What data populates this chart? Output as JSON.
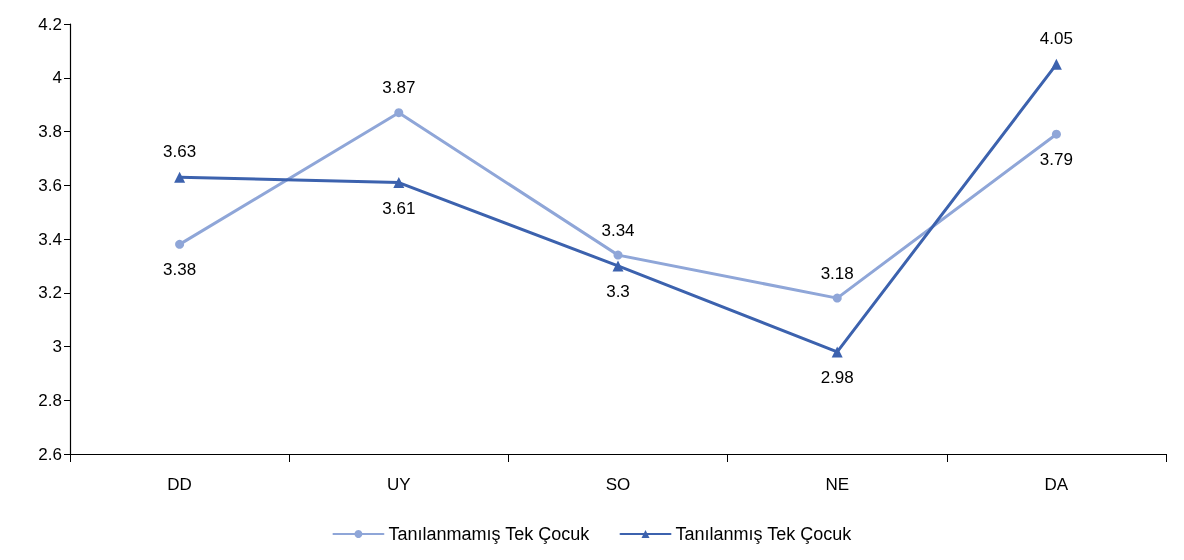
{
  "chart_data": {
    "type": "line",
    "categories": [
      "DD",
      "UY",
      "SO",
      "NE",
      "DA"
    ],
    "series": [
      {
        "name": "Tanılanmamış Tek Çocuk",
        "color": "#8fa6d8",
        "marker": "circle",
        "values": [
          3.38,
          3.87,
          3.34,
          3.18,
          3.79
        ]
      },
      {
        "name": "Tanılanmış Tek Çocuk",
        "color": "#3c62ae",
        "marker": "triangle",
        "values": [
          3.63,
          3.61,
          3.3,
          2.98,
          4.05
        ]
      }
    ],
    "ylim": [
      2.6,
      4.2
    ],
    "yticks": [
      2.6,
      2.8,
      3,
      3.2,
      3.4,
      3.6,
      3.8,
      4,
      4.2
    ],
    "grid": false,
    "legend": "bottom",
    "data_labels": true
  }
}
